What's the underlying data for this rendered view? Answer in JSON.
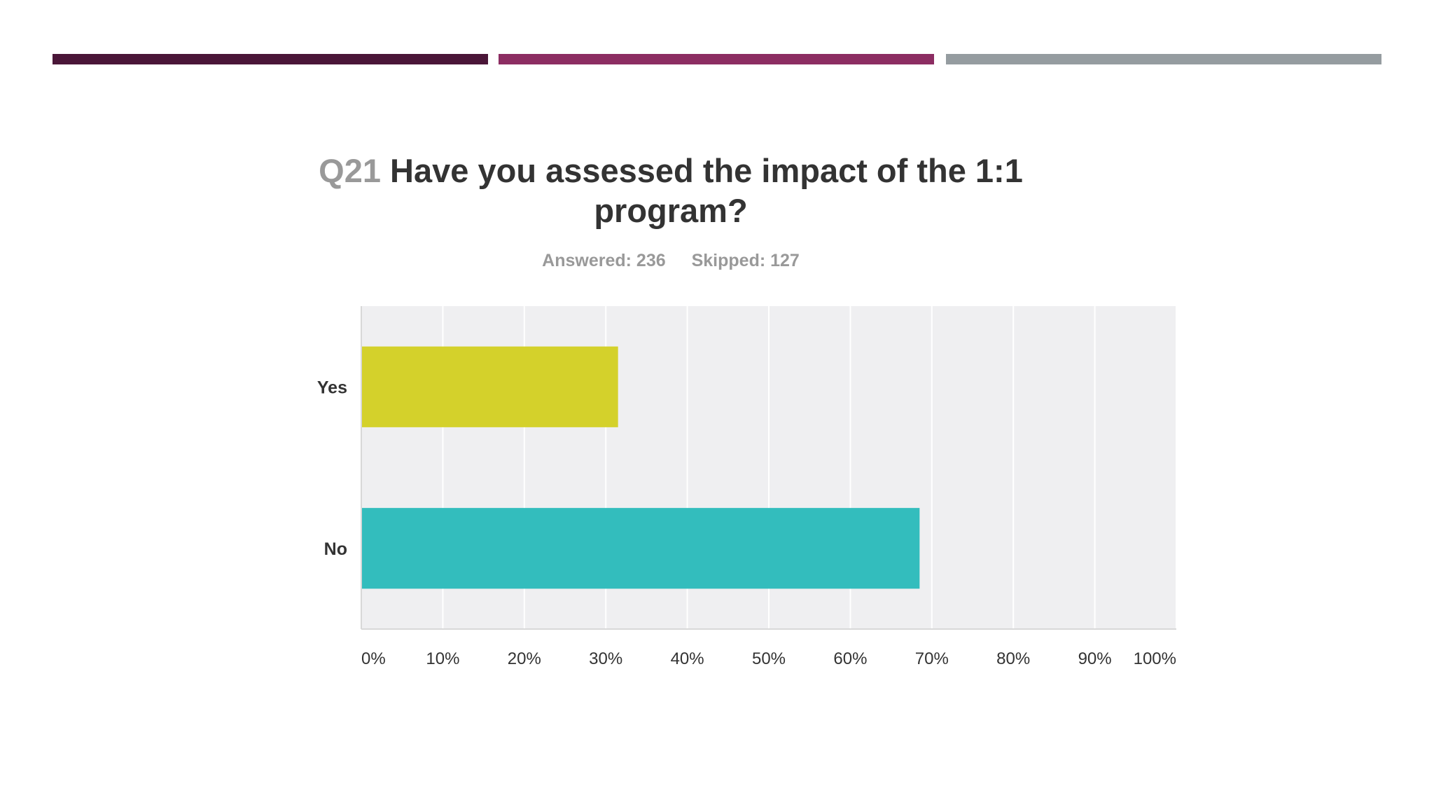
{
  "accent_colors": [
    "#4a1638",
    "#8c2d62",
    "#959ca0"
  ],
  "question": {
    "number": "Q21",
    "text": "Have you assessed the impact of the 1:1 program?"
  },
  "stats": {
    "answered": "Answered: 236",
    "skipped": "Skipped: 127"
  },
  "chart_data": {
    "type": "bar",
    "orientation": "horizontal",
    "categories": [
      "Yes",
      "No"
    ],
    "values": [
      31.5,
      68.5
    ],
    "colors": [
      "#d4d12b",
      "#33bdbd"
    ],
    "xlim": [
      0,
      100
    ],
    "x_ticks": [
      "0%",
      "10%",
      "20%",
      "30%",
      "40%",
      "50%",
      "60%",
      "70%",
      "80%",
      "90%",
      "100%"
    ],
    "grid": true,
    "plot_background": "#efeff1"
  }
}
